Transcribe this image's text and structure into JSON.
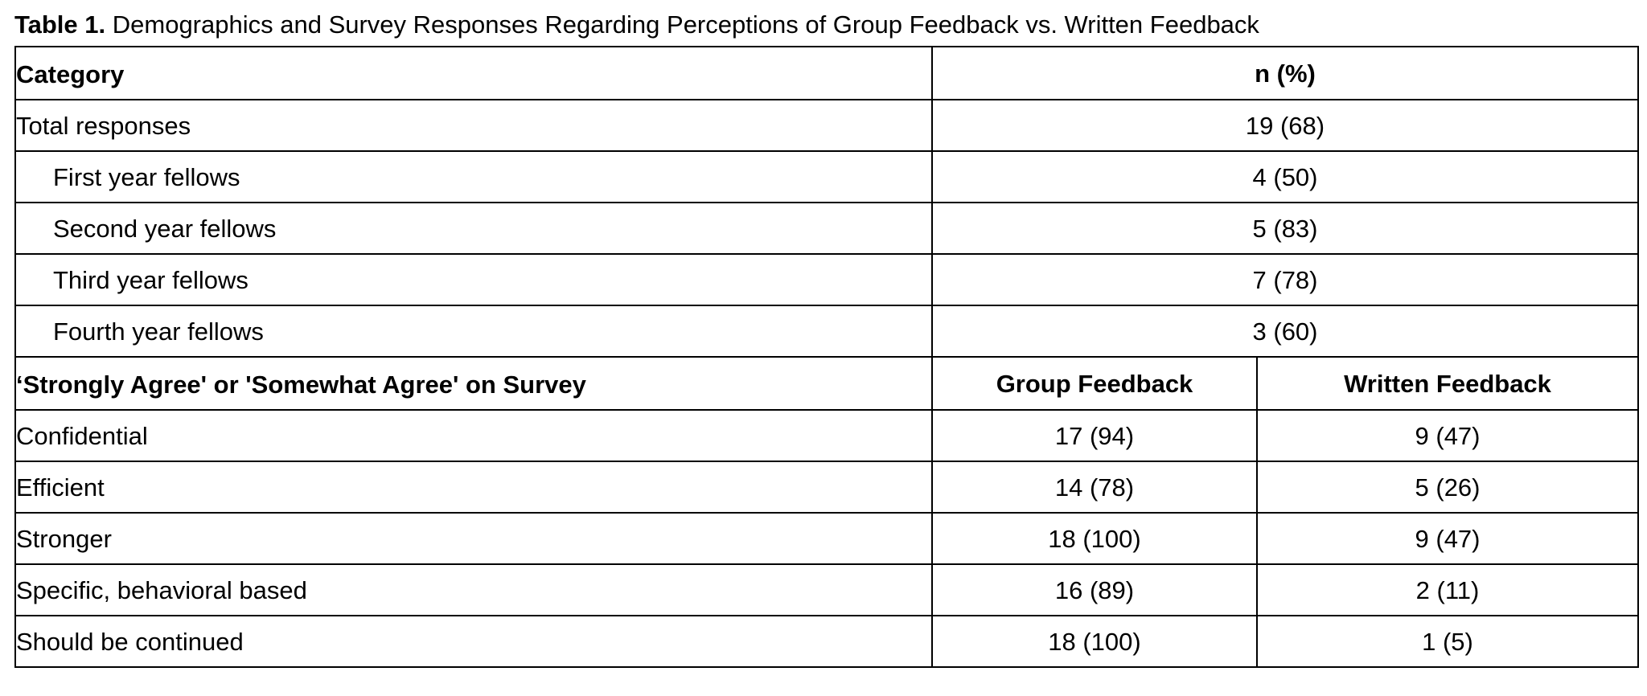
{
  "caption": {
    "lead": "Table 1.",
    "text": " Demographics and Survey Responses Regarding Perceptions of Group Feedback vs. Written Feedback"
  },
  "demographics": {
    "header_category": "Category",
    "header_value": "n (%)",
    "rows": [
      {
        "label": "Total responses",
        "value": "19 (68)"
      },
      {
        "label": "First year fellows",
        "value": "4 (50)"
      },
      {
        "label": "Second year fellows",
        "value": "5 (83)"
      },
      {
        "label": "Third year fellows",
        "value": "7 (78)"
      },
      {
        "label": "Fourth year fellows",
        "value": "3 (60)"
      }
    ]
  },
  "survey": {
    "header_label": "‘Strongly Agree' or 'Somewhat Agree' on Survey",
    "header_group": "Group Feedback",
    "header_written": "Written Feedback",
    "rows": [
      {
        "label": "Confidential",
        "group": "17 (94)",
        "written": "9 (47)"
      },
      {
        "label": "Efficient",
        "group": "14 (78)",
        "written": "5 (26)"
      },
      {
        "label": "Stronger",
        "group": "18 (100)",
        "written": "9 (47)"
      },
      {
        "label": "Specific, behavioral based",
        "group": "16 (89)",
        "written": "2 (11)"
      },
      {
        "label": "Should be continued",
        "group": "18 (100)",
        "written": "1 (5)"
      }
    ]
  }
}
